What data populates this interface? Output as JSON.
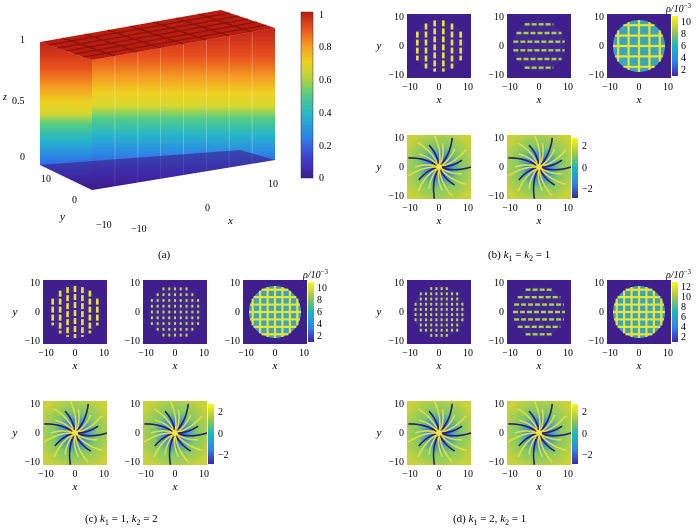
{
  "colors": {
    "colormap": [
      "#3e1a8a",
      "#3f3fd0",
      "#2c84e6",
      "#27b5c9",
      "#52cc86",
      "#b3d23f",
      "#f0d023",
      "#f59a22",
      "#e8521e",
      "#b81d12"
    ]
  },
  "panel_a": {
    "caption": "(a)",
    "axis_z": "z",
    "axis_y": "y",
    "axis_x": "x",
    "z_ticks": [
      "0",
      "0.5",
      "1"
    ],
    "y_ticks": [
      "10",
      "0",
      "−10"
    ],
    "x_ticks": [
      "−10",
      "0",
      "10"
    ],
    "colorbar_ticks": [
      "1",
      "0.8",
      "0.6",
      "0.4",
      "0.2",
      "0"
    ]
  },
  "axes": {
    "xlabel": "x",
    "ylabel": "y",
    "ticks": [
      "−10",
      "0",
      "10"
    ]
  },
  "colorbars": {
    "density_title": "ρ/10",
    "density_exp": "−3",
    "b_density_ticks": [
      "10",
      "8",
      "6",
      "4",
      "2"
    ],
    "c_density_ticks": [
      "10",
      "8",
      "6",
      "4",
      "2"
    ],
    "d_density_ticks": [
      "12",
      "10",
      "8",
      "6",
      "4",
      "2"
    ],
    "phase_ticks": [
      "2",
      "0",
      "−2"
    ]
  },
  "captions": {
    "b": {
      "prefix": "(b) ",
      "k": "k",
      "sub1": "1",
      "eq": " = ",
      "sub2": "2",
      "value": " = 1"
    },
    "c": {
      "prefix": "(c) ",
      "k": "k",
      "sub1": "1",
      "mid": " = 1,  ",
      "sub2": "2",
      "value": " = 2"
    },
    "d": {
      "prefix": "(d) ",
      "k": "k",
      "sub1": "1",
      "mid": " = 2,  ",
      "sub2": "2",
      "value": " = 1"
    }
  }
}
